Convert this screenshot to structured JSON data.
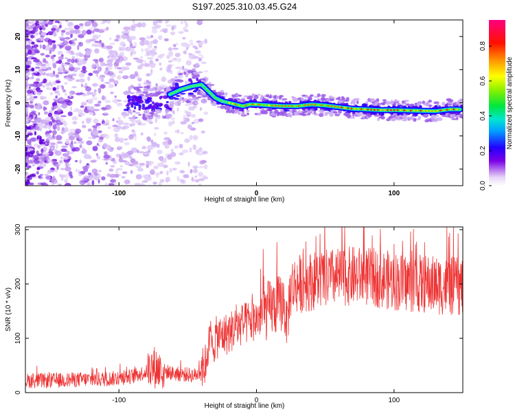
{
  "title": "S197.2025.310.03.45.G24",
  "chart_data": [
    {
      "type": "heatmap",
      "xlabel": "Height of straight line (km)",
      "ylabel": "Frequency (Hz)",
      "xlim": [
        -168,
        150
      ],
      "ylim": [
        -25,
        25
      ],
      "xticks": [
        -100,
        0,
        100
      ],
      "xtick_labels": [
        "-100",
        "0",
        "100"
      ],
      "yticks": [
        -20,
        -10,
        0,
        10,
        20
      ],
      "ytick_labels": [
        "-20",
        "-10",
        "0",
        "10",
        "20"
      ],
      "colorbar": {
        "label": "Normalized spectral amplitude",
        "range": [
          0,
          0.95
        ],
        "ticks": [
          0.0,
          0.2,
          0.4,
          0.6,
          0.8
        ],
        "tick_labels": [
          "0.0",
          "0.2",
          "0.4",
          "0.6",
          "0.8"
        ]
      },
      "ridge": {
        "name": "peak frequency track",
        "x": [
          -63,
          -55,
          -47,
          -40,
          -35,
          -30,
          -25,
          -20,
          -15,
          -10,
          -5,
          0,
          10,
          20,
          30,
          40,
          50,
          60,
          70,
          80,
          90,
          100,
          110,
          120,
          130,
          140,
          148
        ],
        "y": [
          2.5,
          4.0,
          5.0,
          5.5,
          3.5,
          1.5,
          0.5,
          0.0,
          -0.5,
          -1.0,
          -0.5,
          -0.5,
          -0.8,
          -1.0,
          -1.0,
          -0.5,
          -0.8,
          -1.3,
          -1.8,
          -2.0,
          -2.2,
          -2.2,
          -2.3,
          -2.4,
          -2.5,
          -2.0,
          -2.0
        ]
      }
    },
    {
      "type": "line",
      "xlabel": "Height of straight line (km)",
      "ylabel": "SNR (10 * v/v)",
      "xlim": [
        -168,
        150
      ],
      "ylim": [
        0,
        305
      ],
      "xticks": [
        -100,
        0,
        100
      ],
      "xtick_labels": [
        "-100",
        "0",
        "100"
      ],
      "yticks": [
        0,
        100,
        200,
        300
      ],
      "ytick_labels": [
        "0",
        "100",
        "200",
        "300"
      ],
      "series": [
        {
          "name": "SNR",
          "color": "#ee3333",
          "x": [
            -168,
            -150,
            -130,
            -110,
            -100,
            -90,
            -80,
            -75,
            -70,
            -60,
            -50,
            -45,
            -42,
            -40,
            -38,
            -35,
            -32,
            -30,
            -25,
            -20,
            -15,
            -10,
            -5,
            0,
            5,
            10,
            15,
            20,
            22,
            25,
            30,
            40,
            50,
            60,
            70,
            80,
            90,
            100,
            110,
            120,
            130,
            140,
            150
          ],
          "y": [
            22,
            22,
            24,
            25,
            27,
            30,
            38,
            48,
            42,
            35,
            33,
            32,
            35,
            50,
            38,
            90,
            80,
            100,
            105,
            110,
            120,
            125,
            130,
            135,
            145,
            155,
            160,
            170,
            125,
            195,
            200,
            205,
            210,
            212,
            215,
            213,
            210,
            205,
            202,
            200,
            198,
            196,
            195
          ]
        }
      ]
    }
  ]
}
